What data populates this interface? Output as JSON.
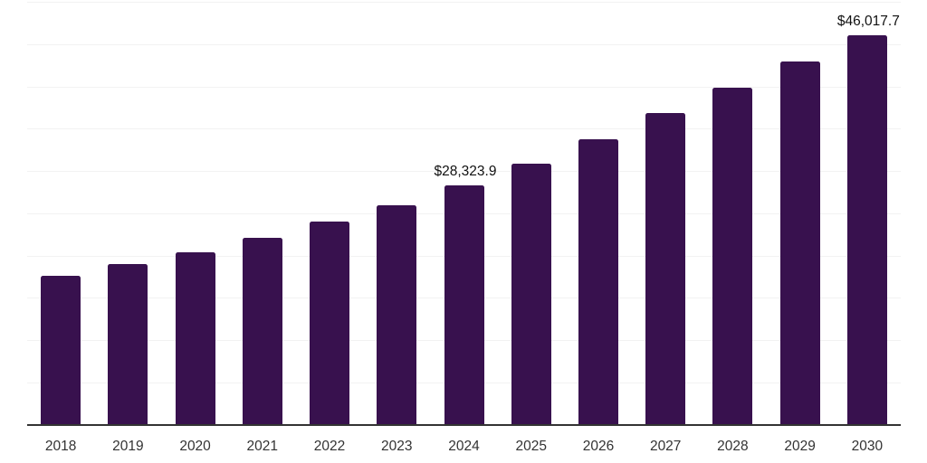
{
  "chart_data": {
    "type": "bar",
    "categories": [
      "2018",
      "2019",
      "2020",
      "2021",
      "2022",
      "2023",
      "2024",
      "2025",
      "2026",
      "2027",
      "2028",
      "2029",
      "2030"
    ],
    "values": [
      17600,
      19000,
      20400,
      22100,
      24000,
      25900,
      28323.9,
      30900,
      33700,
      36800,
      39800,
      42900,
      46017.7
    ],
    "data_labels": [
      "",
      "",
      "",
      "",
      "",
      "",
      "$28,323.9",
      "",
      "",
      "",
      "",
      "",
      "$46,017.7"
    ],
    "xlabel": "",
    "ylabel": "",
    "ylim": [
      0,
      50000
    ],
    "gridline_step": 5000,
    "grid": true,
    "legend": "none",
    "colors": {
      "bar": "#38114E",
      "gridline": "#f2f2f2",
      "axis_line": "#333333",
      "tick_label": "#333333",
      "value_label": "#111111"
    }
  }
}
